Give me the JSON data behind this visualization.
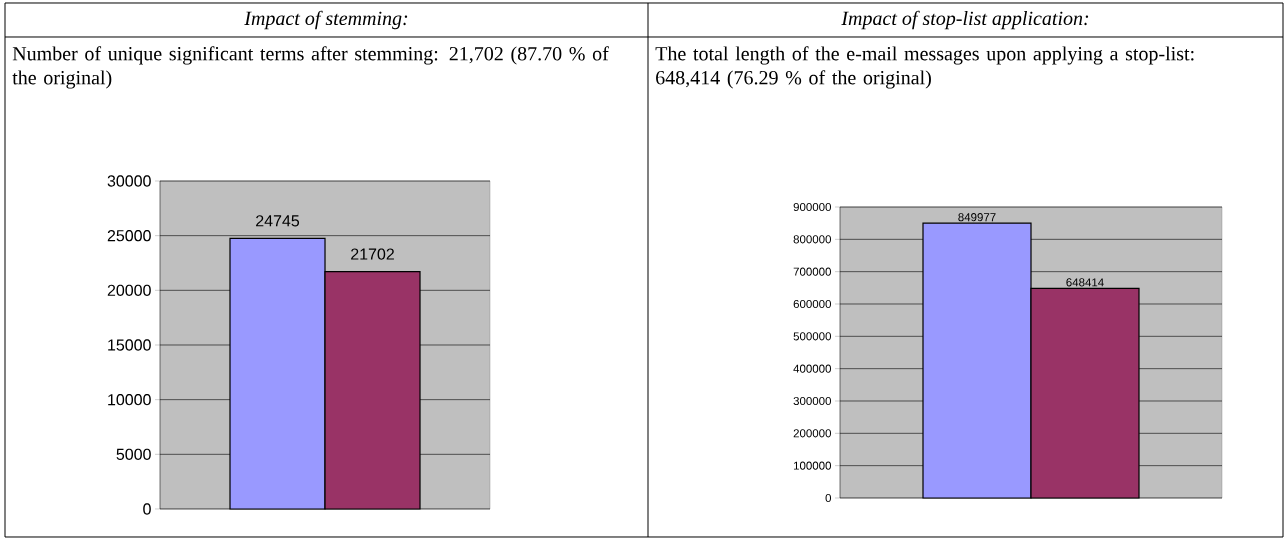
{
  "chart_data": [
    {
      "type": "bar",
      "title": "Impact of stemming:",
      "subtitle": "Number of unique significant terms after stemming: 21,702 (87.70 % of the original)",
      "categories": [
        null
      ],
      "series": [
        {
          "color": "#9999ff",
          "values": [
            24745
          ]
        },
        {
          "color": "#993366",
          "values": [
            21702
          ]
        }
      ],
      "ylim": [
        0,
        30000
      ],
      "yticks": [
        0,
        5000,
        10000,
        15000,
        20000,
        25000,
        30000
      ],
      "grid": "y",
      "data_labels": true
    },
    {
      "type": "bar",
      "title": "Impact of stop-list application:",
      "subtitle": "The total length of the e-mail messages upon applying a stop-list:  648,414 (76.29 % of the original)",
      "categories": [
        null
      ],
      "series": [
        {
          "color": "#9999ff",
          "values": [
            849977
          ]
        },
        {
          "color": "#993366",
          "values": [
            648414
          ]
        }
      ],
      "ylim": [
        0,
        900000
      ],
      "yticks": [
        0,
        100000,
        200000,
        300000,
        400000,
        500000,
        600000,
        700000,
        800000,
        900000
      ],
      "grid": "y",
      "data_labels": true
    }
  ]
}
